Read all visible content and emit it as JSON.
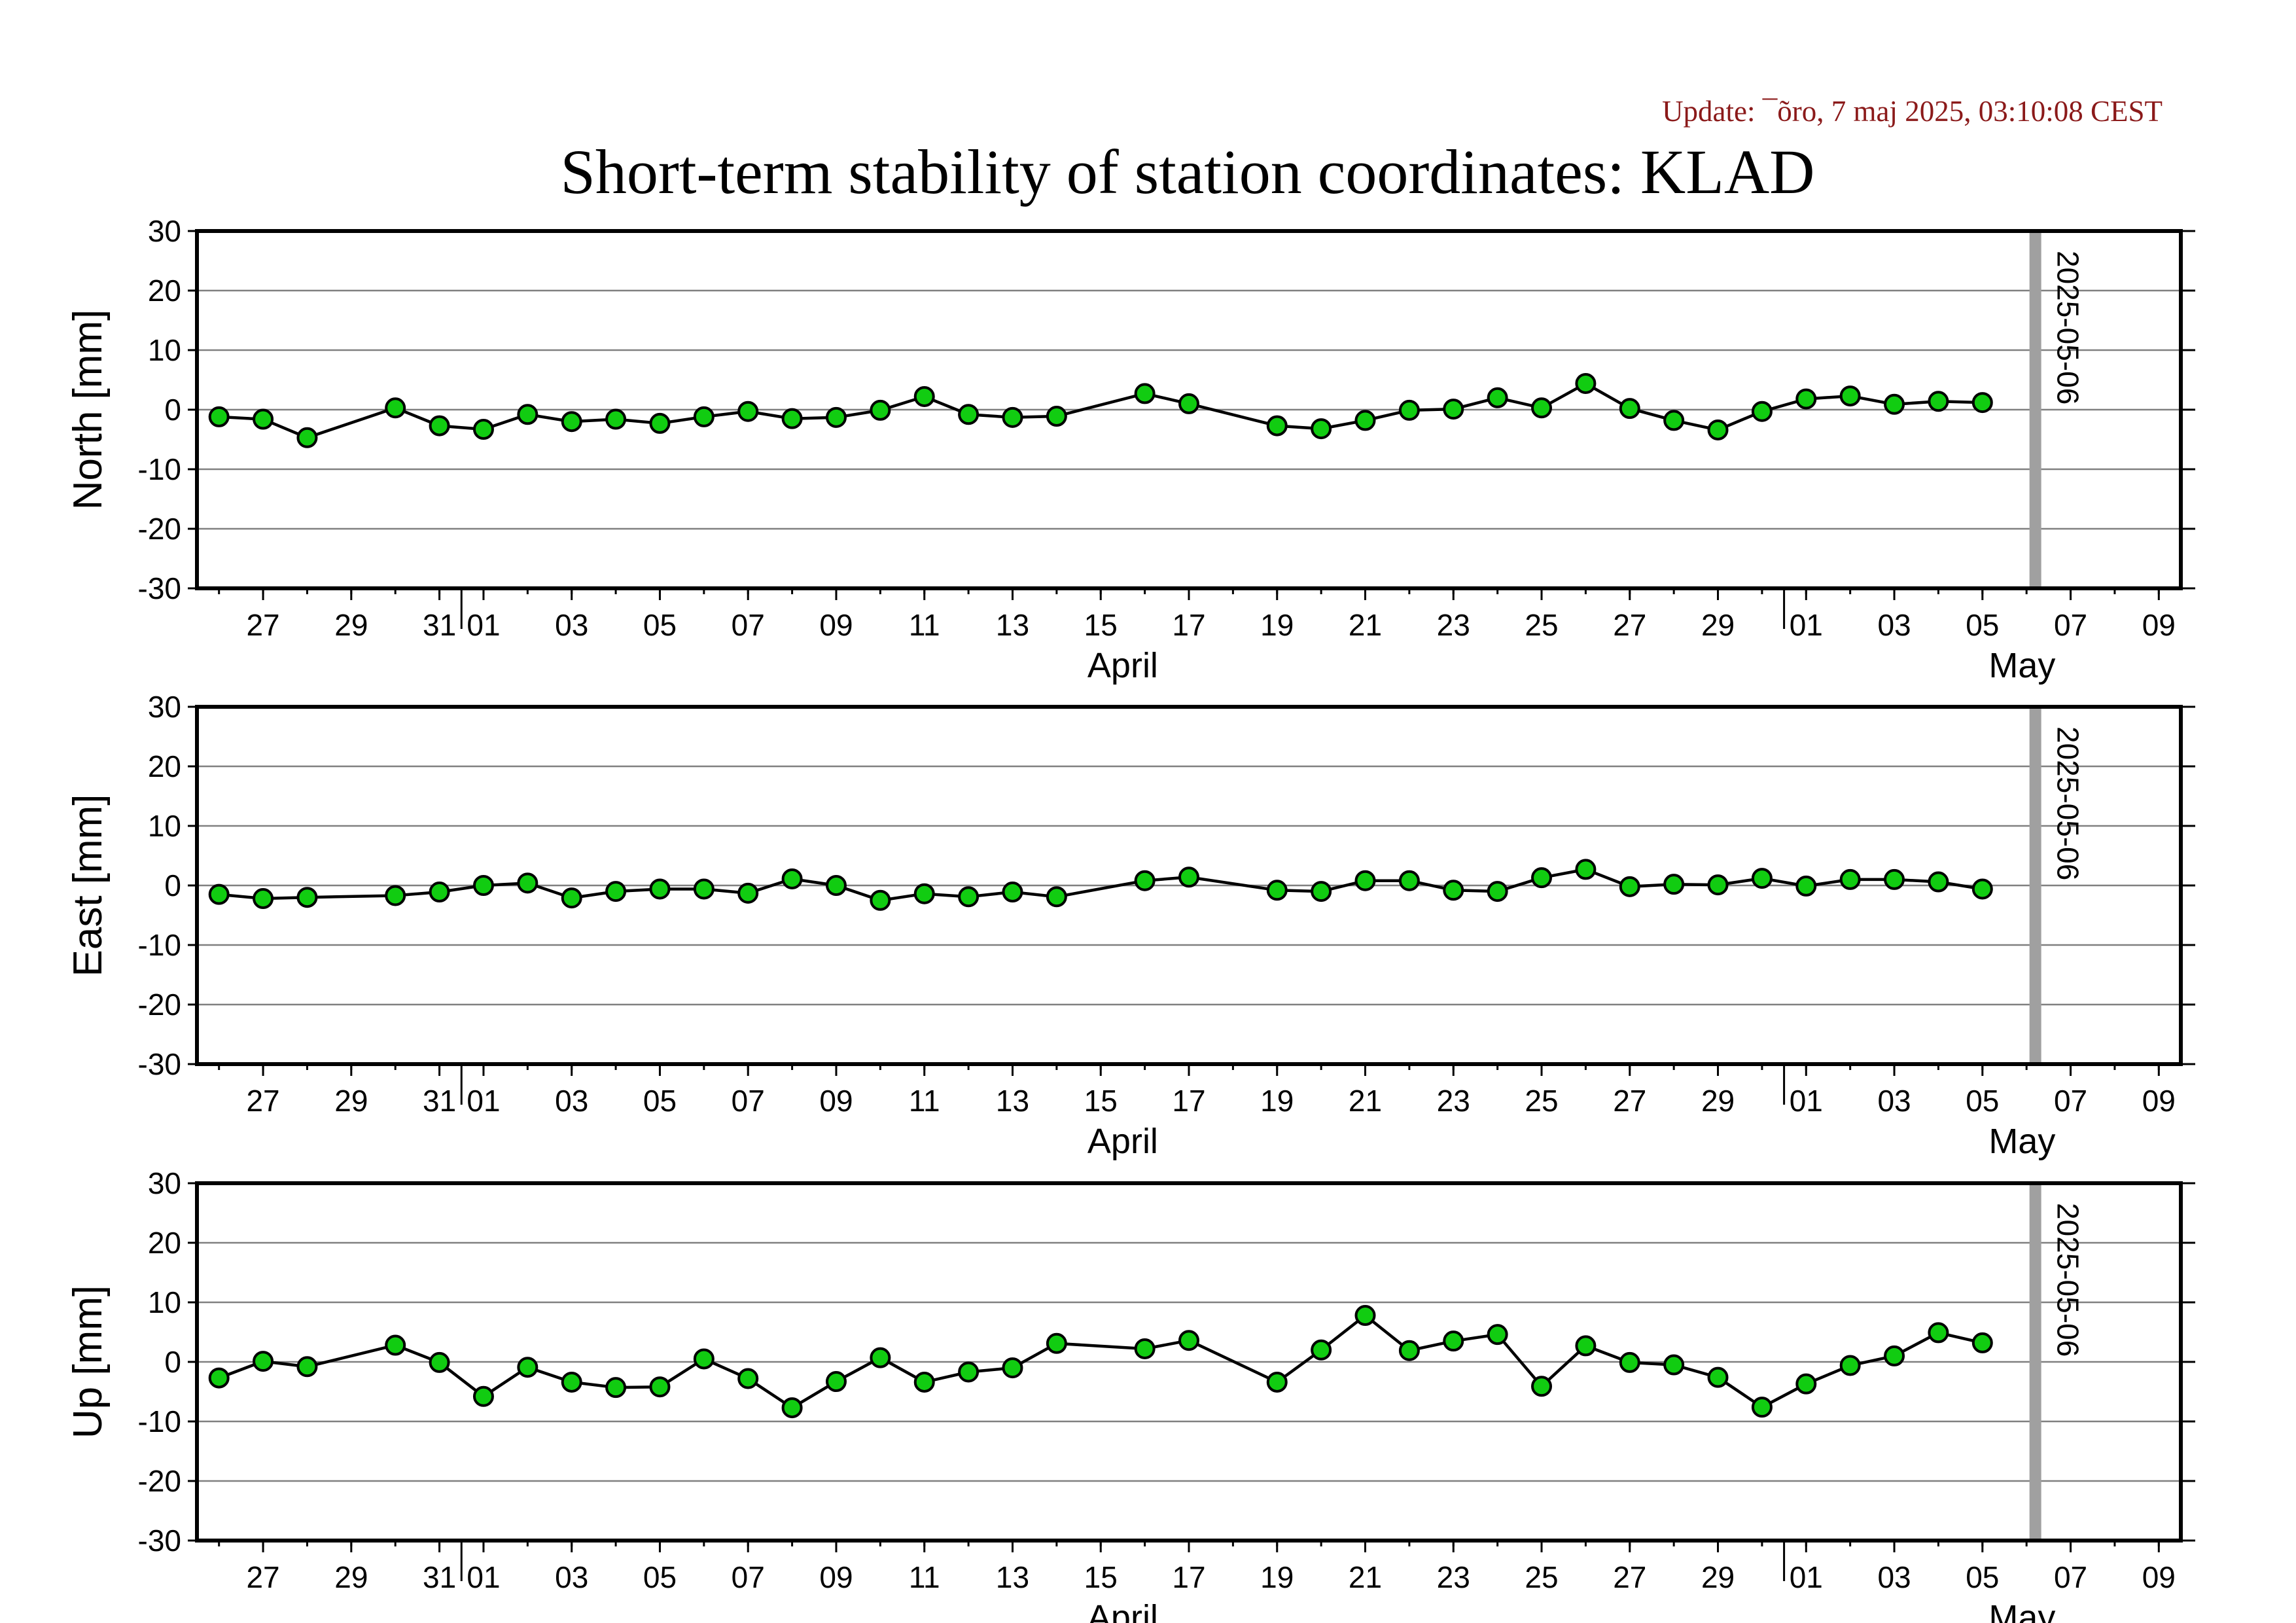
{
  "header": {
    "update_text": "Update: ¯õro, 7 maj 2025, 03:10:08 CEST",
    "title": "Short-term stability of station coordinates: KLAD"
  },
  "colors": {
    "point_fill": "#11cc11",
    "line": "#000000",
    "grid": "#808080",
    "marker_line": "#a0a0a0",
    "update_text": "#8b1a1a"
  },
  "chart_data": [
    {
      "type": "line",
      "ylabel": "North [mm]",
      "ylim": [
        -30,
        30
      ],
      "yticks": [
        30,
        20,
        10,
        0,
        -10,
        -20,
        -30
      ],
      "xlim": [
        "2025-03-25 12:00",
        "2025-05-09 12:00"
      ],
      "x_tick_labels": [
        "27",
        "29",
        "31",
        "01",
        "03",
        "05",
        "07",
        "09",
        "11",
        "13",
        "15",
        "17",
        "19",
        "21",
        "23",
        "25",
        "27",
        "29",
        "01",
        "03",
        "05",
        "07",
        "09"
      ],
      "month_labels": [
        "April",
        "May"
      ],
      "grid": true,
      "marker_line": {
        "date": "2025-05-06",
        "label": "2025-05-06"
      },
      "series": [
        {
          "x": [
            "2025-03-26",
            "2025-03-27",
            "2025-03-28",
            "2025-03-30",
            "2025-03-31",
            "2025-04-01",
            "2025-04-02",
            "2025-04-03",
            "2025-04-04",
            "2025-04-05",
            "2025-04-06",
            "2025-04-07",
            "2025-04-08",
            "2025-04-09",
            "2025-04-10",
            "2025-04-11",
            "2025-04-12",
            "2025-04-13",
            "2025-04-14",
            "2025-04-16",
            "2025-04-17",
            "2025-04-19",
            "2025-04-20",
            "2025-04-21",
            "2025-04-22",
            "2025-04-23",
            "2025-04-24",
            "2025-04-25",
            "2025-04-26",
            "2025-04-27",
            "2025-04-28",
            "2025-04-29",
            "2025-04-30",
            "2025-05-01",
            "2025-05-02",
            "2025-05-03",
            "2025-05-04",
            "2025-05-05"
          ],
          "y": [
            -1.2,
            -1.6,
            -4.7,
            0.3,
            -2.7,
            -3.3,
            -0.8,
            -2.0,
            -1.6,
            -2.3,
            -1.2,
            -0.3,
            -1.5,
            -1.3,
            -0.1,
            2.2,
            -0.8,
            -1.3,
            -1.1,
            2.7,
            1.0,
            -2.7,
            -3.2,
            -1.8,
            -0.1,
            0.1,
            2.0,
            0.3,
            4.4,
            0.2,
            -1.8,
            -3.4,
            -0.3,
            1.8,
            2.3,
            0.9,
            1.4,
            1.2
          ]
        }
      ]
    },
    {
      "type": "line",
      "ylabel": "East [mm]",
      "ylim": [
        -30,
        30
      ],
      "yticks": [
        30,
        20,
        10,
        0,
        -10,
        -20,
        -30
      ],
      "xlim": [
        "2025-03-25 12:00",
        "2025-05-09 12:00"
      ],
      "x_tick_labels": [
        "27",
        "29",
        "31",
        "01",
        "03",
        "05",
        "07",
        "09",
        "11",
        "13",
        "15",
        "17",
        "19",
        "21",
        "23",
        "25",
        "27",
        "29",
        "01",
        "03",
        "05",
        "07",
        "09"
      ],
      "month_labels": [
        "April",
        "May"
      ],
      "grid": true,
      "marker_line": {
        "date": "2025-05-06",
        "label": "2025-05-06"
      },
      "series": [
        {
          "x": [
            "2025-03-26",
            "2025-03-27",
            "2025-03-28",
            "2025-03-30",
            "2025-03-31",
            "2025-04-01",
            "2025-04-02",
            "2025-04-03",
            "2025-04-04",
            "2025-04-05",
            "2025-04-06",
            "2025-04-07",
            "2025-04-08",
            "2025-04-09",
            "2025-04-10",
            "2025-04-11",
            "2025-04-12",
            "2025-04-13",
            "2025-04-14",
            "2025-04-16",
            "2025-04-17",
            "2025-04-19",
            "2025-04-20",
            "2025-04-21",
            "2025-04-22",
            "2025-04-23",
            "2025-04-24",
            "2025-04-25",
            "2025-04-26",
            "2025-04-27",
            "2025-04-28",
            "2025-04-29",
            "2025-04-30",
            "2025-05-01",
            "2025-05-02",
            "2025-05-03",
            "2025-05-04",
            "2025-05-05"
          ],
          "y": [
            -1.5,
            -2.2,
            -2.0,
            -1.7,
            -1.1,
            0.0,
            0.4,
            -2.1,
            -1.0,
            -0.6,
            -0.6,
            -1.3,
            1.1,
            0.0,
            -2.5,
            -1.4,
            -1.9,
            -1.1,
            -1.9,
            0.8,
            1.4,
            -0.8,
            -1.0,
            0.8,
            0.8,
            -0.8,
            -1.0,
            1.3,
            2.7,
            -0.2,
            0.2,
            0.1,
            1.2,
            -0.1,
            1.0,
            1.0,
            0.6,
            -0.6
          ]
        }
      ]
    },
    {
      "type": "line",
      "ylabel": "Up [mm]",
      "ylim": [
        -30,
        30
      ],
      "yticks": [
        30,
        20,
        10,
        0,
        -10,
        -20,
        -30
      ],
      "xlim": [
        "2025-03-25 12:00",
        "2025-05-09 12:00"
      ],
      "x_tick_labels": [
        "27",
        "29",
        "31",
        "01",
        "03",
        "05",
        "07",
        "09",
        "11",
        "13",
        "15",
        "17",
        "19",
        "21",
        "23",
        "25",
        "27",
        "29",
        "01",
        "03",
        "05",
        "07",
        "09"
      ],
      "month_labels": [
        "April",
        "May"
      ],
      "grid": true,
      "marker_line": {
        "date": "2025-05-06",
        "label": "2025-05-06"
      },
      "series": [
        {
          "x": [
            "2025-03-26",
            "2025-03-27",
            "2025-03-28",
            "2025-03-30",
            "2025-03-31",
            "2025-04-01",
            "2025-04-02",
            "2025-04-03",
            "2025-04-04",
            "2025-04-05",
            "2025-04-06",
            "2025-04-07",
            "2025-04-08",
            "2025-04-09",
            "2025-04-10",
            "2025-04-11",
            "2025-04-12",
            "2025-04-13",
            "2025-04-14",
            "2025-04-16",
            "2025-04-17",
            "2025-04-19",
            "2025-04-20",
            "2025-04-21",
            "2025-04-22",
            "2025-04-23",
            "2025-04-24",
            "2025-04-25",
            "2025-04-26",
            "2025-04-27",
            "2025-04-28",
            "2025-04-29",
            "2025-04-30",
            "2025-05-01",
            "2025-05-02",
            "2025-05-03",
            "2025-05-04",
            "2025-05-05"
          ],
          "y": [
            -2.7,
            0.1,
            -0.8,
            2.8,
            -0.1,
            -5.8,
            -0.9,
            -3.4,
            -4.3,
            -4.2,
            0.5,
            -2.8,
            -7.7,
            -3.3,
            0.7,
            -3.4,
            -1.7,
            -1.0,
            3.1,
            2.2,
            3.6,
            -3.4,
            2.0,
            7.8,
            1.9,
            3.5,
            4.6,
            -4.1,
            2.7,
            -0.1,
            -0.5,
            -2.6,
            -7.6,
            -3.7,
            -0.6,
            1.0,
            4.9,
            3.2
          ]
        }
      ]
    }
  ]
}
